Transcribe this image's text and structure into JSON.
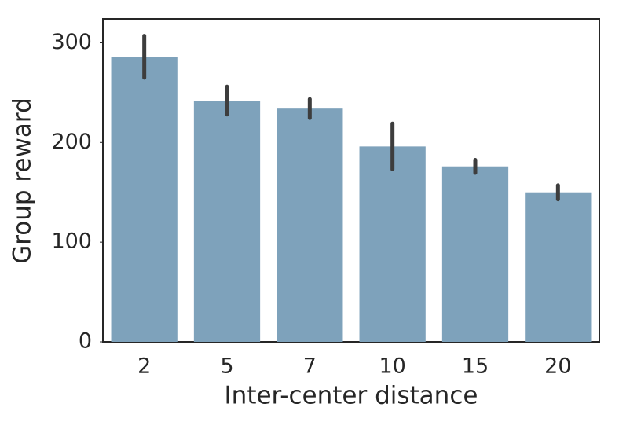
{
  "chart_data": {
    "type": "bar",
    "x_label": "Inter-center distance",
    "y_label": "Group reward",
    "categories": [
      "2",
      "5",
      "7",
      "10",
      "15",
      "20"
    ],
    "values": [
      286,
      242,
      234,
      196,
      176,
      150
    ],
    "errors": [
      21,
      14,
      9.5,
      23,
      6.5,
      7
    ],
    "color": "#7ea2bb",
    "error_color": "#3d3d3d",
    "ylim": [
      0,
      324
    ],
    "yticks": [
      0,
      100,
      200,
      300
    ],
    "grid": false
  }
}
